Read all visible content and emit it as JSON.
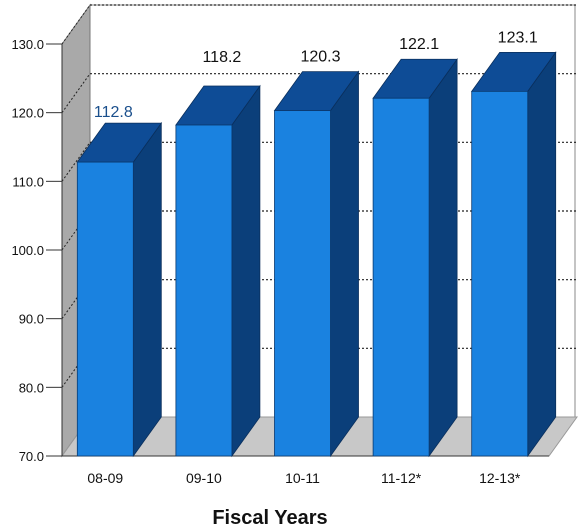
{
  "chart_data": {
    "type": "bar",
    "categories": [
      "08-09",
      "09-10",
      "10-11",
      "11-12*",
      "12-13*"
    ],
    "values": [
      112.8,
      118.2,
      120.3,
      122.1,
      123.1
    ],
    "value_labels": [
      "112.8",
      "118.2",
      "120.3",
      "122.1",
      "123.1"
    ],
    "title": "",
    "xlabel": "Fiscal Years",
    "ylabel": "",
    "ylim": [
      70,
      130
    ],
    "yticks": [
      "70.0",
      "80.0",
      "90.0",
      "100.0",
      "110.0",
      "120.0",
      "130.0"
    ],
    "grid": true,
    "legend": "none",
    "style": "3d",
    "colors": {
      "bar_front": "#1a82e0",
      "bar_top": "#0e4c96",
      "bar_side": "#0b3f7a",
      "wall_left": "#a9a9a9",
      "floor": "#c8c8c8",
      "grid": "#222222",
      "first_value_label": "#1a4f8c",
      "text": "#111111"
    }
  }
}
